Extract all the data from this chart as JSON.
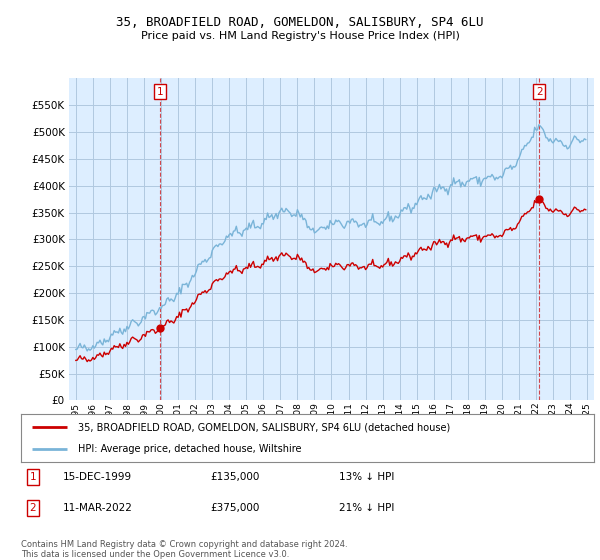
{
  "title": "35, BROADFIELD ROAD, GOMELDON, SALISBURY, SP4 6LU",
  "subtitle": "Price paid vs. HM Land Registry's House Price Index (HPI)",
  "legend_line1": "35, BROADFIELD ROAD, GOMELDON, SALISBURY, SP4 6LU (detached house)",
  "legend_line2": "HPI: Average price, detached house, Wiltshire",
  "annotation1_label": "1",
  "annotation1_date": "15-DEC-1999",
  "annotation1_price": "£135,000",
  "annotation1_pct": "13% ↓ HPI",
  "annotation2_label": "2",
  "annotation2_date": "11-MAR-2022",
  "annotation2_price": "£375,000",
  "annotation2_pct": "21% ↓ HPI",
  "footnote": "Contains HM Land Registry data © Crown copyright and database right 2024.\nThis data is licensed under the Open Government Licence v3.0.",
  "hpi_color": "#7ab4d8",
  "price_color": "#cc0000",
  "chart_bg": "#ddeeff",
  "grid_color": "#b0c8e0",
  "ylim": [
    0,
    600000
  ],
  "yticks": [
    0,
    50000,
    100000,
    150000,
    200000,
    250000,
    300000,
    350000,
    400000,
    450000,
    500000,
    550000
  ],
  "sale1_x": 1999.958,
  "sale1_y": 135000,
  "sale2_x": 2022.19,
  "sale2_y": 375000,
  "xlim_left": 1994.6,
  "xlim_right": 2025.4
}
